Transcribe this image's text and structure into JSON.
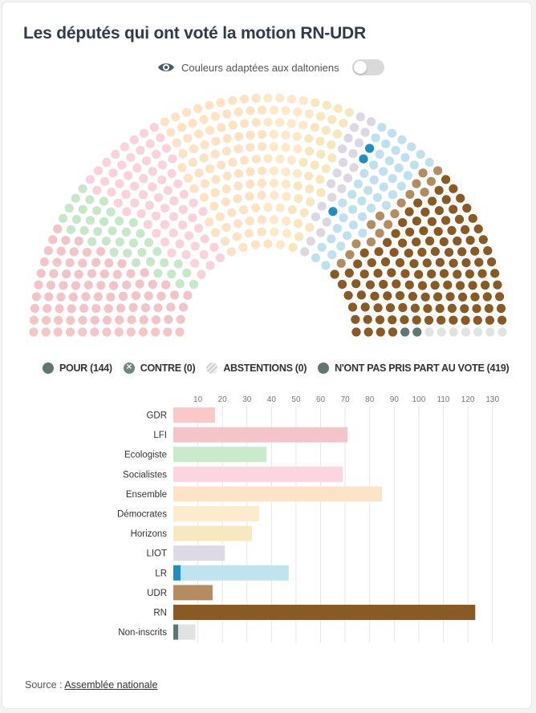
{
  "title": "Les députés qui ont voté la motion RN-UDR",
  "colorblind_toggle": {
    "label": "Couleurs adaptées aux daltoniens",
    "enabled": false
  },
  "legend": [
    {
      "label": "POUR (144)",
      "type": "pour"
    },
    {
      "label": "CONTRE (0)",
      "type": "contre"
    },
    {
      "label": "ABSTENTIONS (0)",
      "type": "abst"
    },
    {
      "label": "N'ONT PAS PRIS PART AU VOTE (419)",
      "type": "npp"
    }
  ],
  "source": {
    "prefix": "Source : ",
    "link_text": "Assemblée nationale"
  },
  "hemicycle_data": {
    "groups": [
      {
        "name": "GDR",
        "seats": 17,
        "color": "#f5c6c6"
      },
      {
        "name": "LFI",
        "seats": 71,
        "color": "#f2c4c9"
      },
      {
        "name": "Ecologiste",
        "seats": 38,
        "color": "#c6e8c9"
      },
      {
        "name": "Socialistes",
        "seats": 69,
        "color": "#f9d2dd"
      },
      {
        "name": "Ensemble",
        "seats": 85,
        "color": "#fde3c4"
      },
      {
        "name": "Démocrates",
        "seats": 35,
        "color": "#fde9c7"
      },
      {
        "name": "Horizons",
        "seats": 32,
        "color": "#f7e7bd"
      },
      {
        "name": "LIOT",
        "seats": 21,
        "color": "#dcd7e2"
      },
      {
        "name": "LR",
        "seats": 47,
        "color": "#bfe1ee",
        "pour": 3,
        "pour_color": "#1e8fc2"
      },
      {
        "name": "UDR",
        "seats": 16,
        "color": "#b38c62",
        "pour": 16,
        "pour_color": "#b38c62"
      },
      {
        "name": "RN",
        "seats": 123,
        "color": "#8a5a24",
        "pour": 123,
        "pour_color": "#8a5a24"
      },
      {
        "name": "Non-inscrits",
        "seats": 9,
        "color": "#dfe3e2",
        "pour": 2,
        "pour_color": "#5f7673"
      }
    ]
  },
  "chart_data": {
    "type": "bar",
    "orientation": "horizontal",
    "stacked": true,
    "categories": [
      "GDR",
      "LFI",
      "Ecologiste",
      "Socialistes",
      "Ensemble",
      "Démocrates",
      "Horizons",
      "LIOT",
      "LR",
      "UDR",
      "RN",
      "Non-inscrits"
    ],
    "series": [
      {
        "name": "Pour",
        "values": [
          0,
          0,
          0,
          0,
          0,
          0,
          0,
          0,
          3,
          16,
          123,
          2
        ]
      },
      {
        "name": "N'ont pas pris part au vote",
        "values": [
          17,
          71,
          38,
          69,
          85,
          35,
          32,
          21,
          44,
          0,
          0,
          7
        ]
      }
    ],
    "colors_pour": [
      "#f5c6c6",
      "#f2c4c9",
      "#c6e8c9",
      "#f9d2dd",
      "#fde3c4",
      "#fde9c7",
      "#f7e7bd",
      "#dcd7e2",
      "#1e8fc2",
      "#b38c62",
      "#8a5a24",
      "#5f7673"
    ],
    "colors_npp": [
      "#f9c8c8",
      "#f3c5cb",
      "#c9eacb",
      "#fbd5e0",
      "#fde4c8",
      "#fdeccc",
      "#f8e8bf",
      "#dedae4",
      "#bfe3ef",
      "#b38c62",
      "#8a5a24",
      "#dfe3e2"
    ],
    "x_ticks": [
      10,
      20,
      30,
      40,
      50,
      60,
      70,
      80,
      90,
      100,
      110,
      120,
      130
    ],
    "xlim": [
      0,
      135
    ],
    "title": "",
    "xlabel": "",
    "ylabel": ""
  }
}
